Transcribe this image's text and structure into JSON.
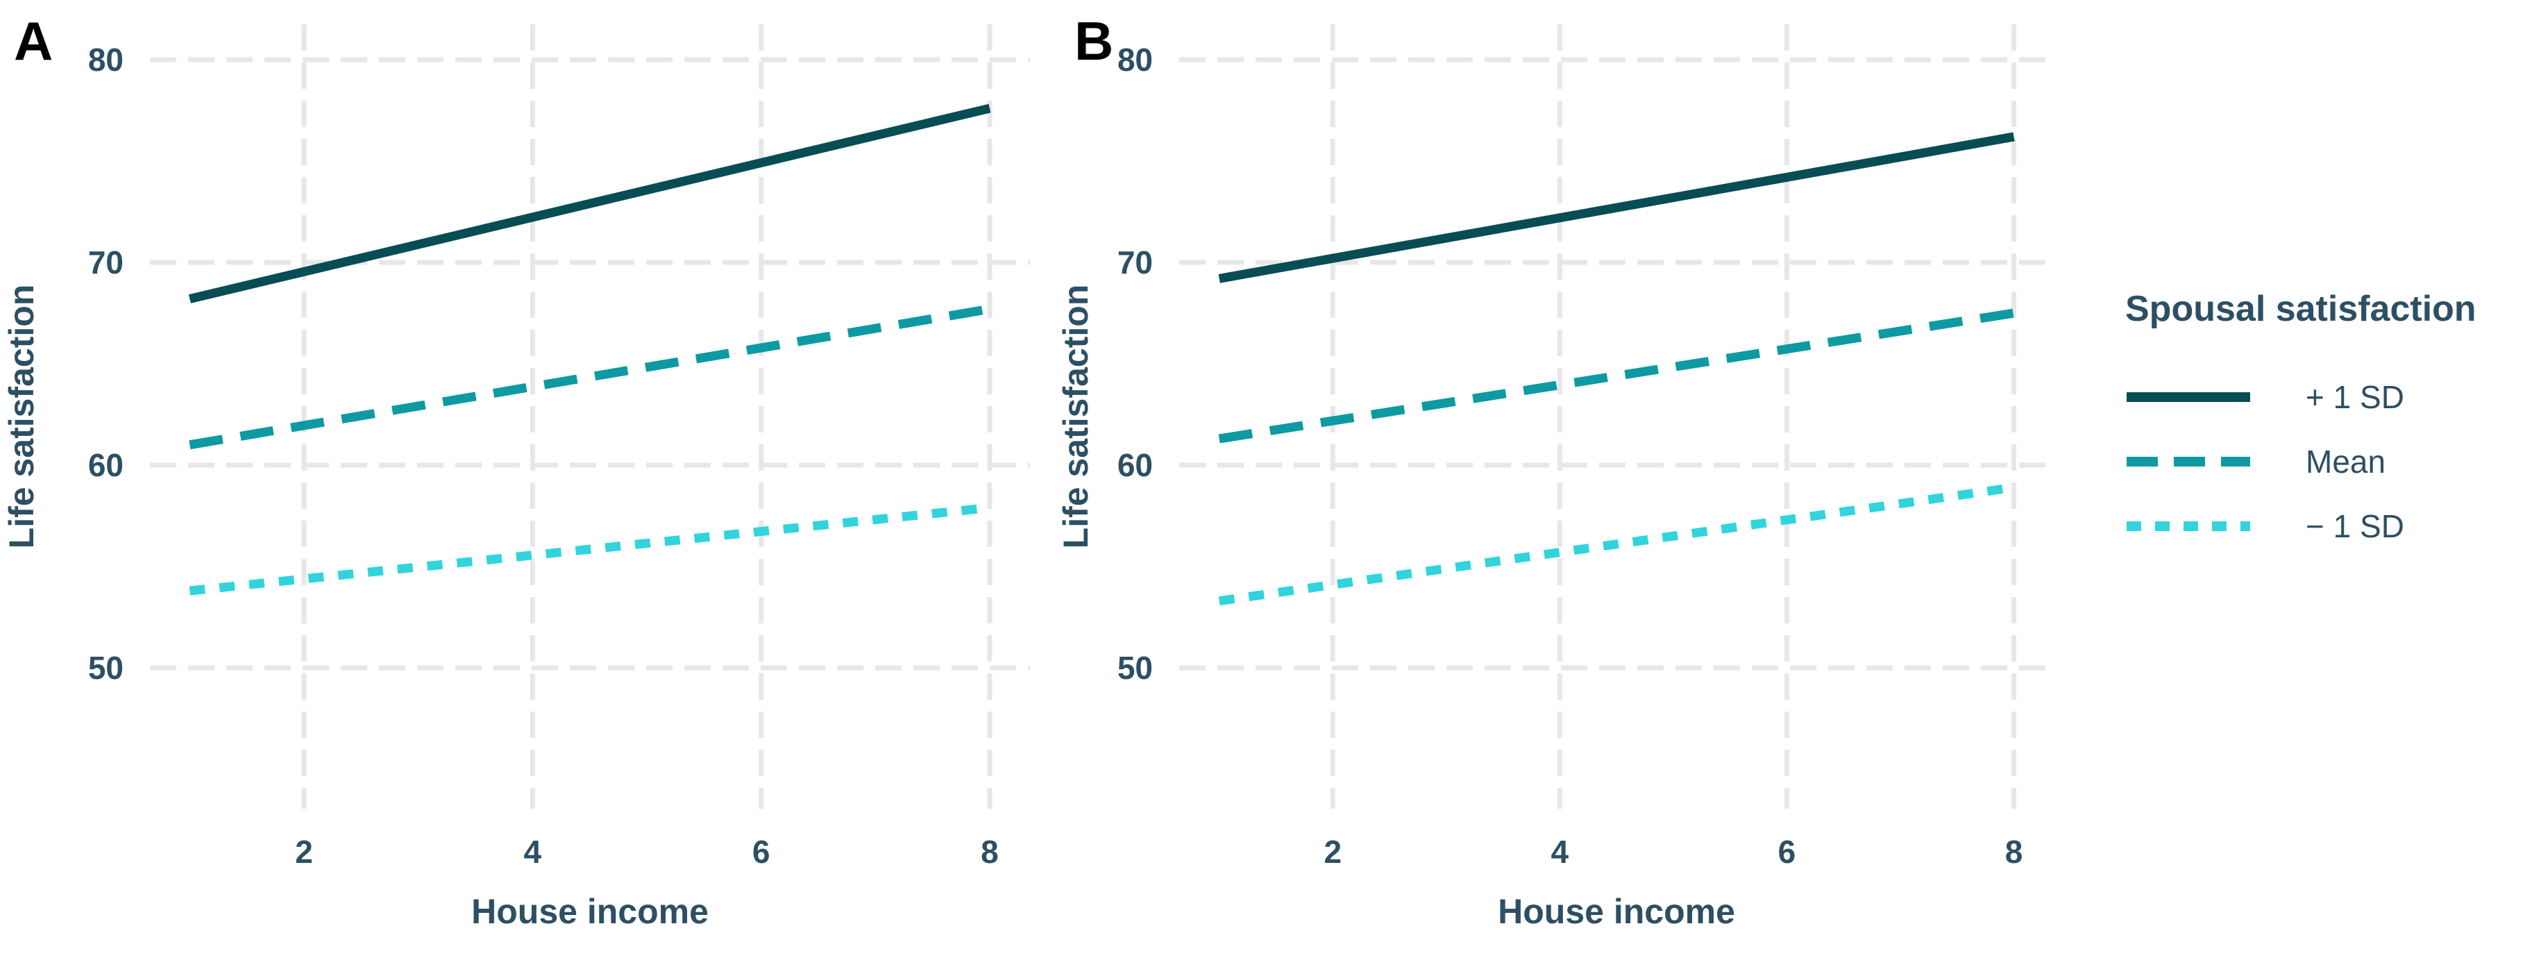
{
  "chart_data": [
    {
      "type": "line",
      "panel_label": "A",
      "xlabel": "House income",
      "ylabel": "Life satisfaction",
      "x_ticks": [
        2,
        4,
        6,
        8
      ],
      "y_ticks": [
        50,
        60,
        70,
        80
      ],
      "xlim": [
        0.65,
        8.35
      ],
      "ylim": [
        43,
        81.8
      ],
      "grid": "dashed light gray, no axis lines",
      "series": [
        {
          "name": "+ 1 SD",
          "line_style": "solid",
          "color": "#084d54",
          "x": [
            1,
            8
          ],
          "y": [
            68.2,
            77.6
          ]
        },
        {
          "name": "Mean",
          "line_style": "dashed",
          "color": "#0d9aa2",
          "x": [
            1,
            8
          ],
          "y": [
            61.0,
            67.7
          ]
        },
        {
          "name": "− 1 SD",
          "line_style": "dotted",
          "color": "#31d4dc",
          "x": [
            1,
            8
          ],
          "y": [
            53.8,
            57.9
          ]
        }
      ]
    },
    {
      "type": "line",
      "panel_label": "B",
      "xlabel": "House income",
      "ylabel": "Life satisfaction",
      "x_ticks": [
        2,
        4,
        6,
        8
      ],
      "y_ticks": [
        50,
        60,
        70,
        80
      ],
      "xlim": [
        0.65,
        8.35
      ],
      "ylim": [
        43,
        81.8
      ],
      "grid": "dashed light gray, no axis lines",
      "series": [
        {
          "name": "+ 1 SD",
          "line_style": "solid",
          "color": "#084d54",
          "x": [
            1,
            8
          ],
          "y": [
            69.2,
            76.2
          ]
        },
        {
          "name": "Mean",
          "line_style": "dashed",
          "color": "#0d9aa2",
          "x": [
            1,
            8
          ],
          "y": [
            61.3,
            67.5
          ]
        },
        {
          "name": "− 1 SD",
          "line_style": "dotted",
          "color": "#31d4dc",
          "x": [
            1,
            8
          ],
          "y": [
            53.3,
            58.9
          ]
        }
      ]
    }
  ],
  "legend": {
    "title": "Spousal satisfaction",
    "position": "right",
    "entries": [
      {
        "label": "+ 1 SD",
        "line_style": "solid",
        "color": "#084d54"
      },
      {
        "label": "Mean",
        "line_style": "dashed",
        "color": "#0d9aa2"
      },
      {
        "label": "− 1 SD",
        "line_style": "dotted",
        "color": "#31d4dc"
      }
    ]
  },
  "colors": {
    "background": "#ffffff",
    "gridline": "#e7e7e7",
    "axis_text": "#2d4f63",
    "panel_letter": "#000000"
  }
}
